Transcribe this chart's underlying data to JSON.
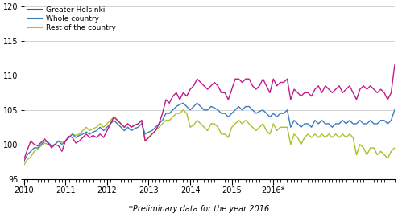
{
  "footnote": "*Preliminary data for the year 2016",
  "ylim": [
    95,
    120
  ],
  "yticks": [
    95,
    100,
    105,
    110,
    115,
    120
  ],
  "legend_labels": [
    "Greater Helsinki",
    "Whole country",
    "Rest of the country"
  ],
  "colors": [
    "#c0198a",
    "#3b7bbf",
    "#aabf28"
  ],
  "linewidth": 1.0,
  "greater_helsinki": [
    97.8,
    99.2,
    100.5,
    100.0,
    99.8,
    100.3,
    100.8,
    100.2,
    99.5,
    100.0,
    99.8,
    99.0,
    100.5,
    101.2,
    101.0,
    100.2,
    100.5,
    101.0,
    101.5,
    101.0,
    101.3,
    101.0,
    101.5,
    101.0,
    102.0,
    103.0,
    104.0,
    103.5,
    103.0,
    102.5,
    103.0,
    102.5,
    102.8,
    103.0,
    103.5,
    100.5,
    101.0,
    101.5,
    102.0,
    103.0,
    104.5,
    106.5,
    106.0,
    107.0,
    107.5,
    106.5,
    107.5,
    107.0,
    108.0,
    108.5,
    109.5,
    109.0,
    108.5,
    108.0,
    108.5,
    109.0,
    108.5,
    107.5,
    107.5,
    106.5,
    108.0,
    109.5,
    109.5,
    109.0,
    109.5,
    109.5,
    108.5,
    108.0,
    108.5,
    109.5,
    108.5,
    107.5,
    109.5,
    108.5,
    109.0,
    109.0,
    109.5,
    106.5,
    108.0,
    107.5,
    107.0,
    107.5,
    107.5,
    107.0,
    108.0,
    108.5,
    107.5,
    108.5,
    108.0,
    107.5,
    108.0,
    108.5,
    107.5,
    108.0,
    108.5,
    107.5,
    106.5,
    108.0,
    108.5,
    108.0,
    108.5,
    108.0,
    107.5,
    108.0,
    107.5,
    106.5,
    107.5,
    111.5
  ],
  "whole_country": [
    97.5,
    98.5,
    99.0,
    99.5,
    99.5,
    100.0,
    100.5,
    100.3,
    99.8,
    100.0,
    100.5,
    100.0,
    100.5,
    101.0,
    101.5,
    101.0,
    101.3,
    101.5,
    101.8,
    101.5,
    101.8,
    102.0,
    102.5,
    102.0,
    102.5,
    103.0,
    103.5,
    103.0,
    102.5,
    102.0,
    102.5,
    102.0,
    102.3,
    102.5,
    103.0,
    101.5,
    101.8,
    102.0,
    102.5,
    103.0,
    103.5,
    104.5,
    104.5,
    105.0,
    105.5,
    105.8,
    106.0,
    105.5,
    105.0,
    105.5,
    106.0,
    105.5,
    105.0,
    105.0,
    105.5,
    105.3,
    105.0,
    104.5,
    104.5,
    104.0,
    104.5,
    105.0,
    105.5,
    105.0,
    105.5,
    105.5,
    105.0,
    104.5,
    104.8,
    105.0,
    104.5,
    104.0,
    104.5,
    104.0,
    104.5,
    104.5,
    105.0,
    102.5,
    103.5,
    103.0,
    102.5,
    103.0,
    103.0,
    102.5,
    103.5,
    103.0,
    103.5,
    103.0,
    103.0,
    102.5,
    103.0,
    103.0,
    103.5,
    103.0,
    103.5,
    103.0,
    103.0,
    103.5,
    103.0,
    103.0,
    103.5,
    103.0,
    103.0,
    103.5,
    103.5,
    103.0,
    103.5,
    105.0
  ],
  "rest_of_country": [
    97.0,
    97.8,
    98.2,
    99.0,
    99.3,
    99.8,
    100.2,
    100.0,
    99.8,
    100.0,
    100.5,
    100.3,
    100.5,
    101.0,
    101.5,
    101.3,
    101.5,
    102.0,
    102.5,
    102.0,
    102.3,
    102.5,
    103.0,
    102.5,
    103.0,
    103.5,
    104.0,
    103.5,
    103.0,
    102.5,
    103.0,
    102.5,
    102.8,
    103.0,
    103.5,
    100.5,
    101.0,
    101.5,
    102.0,
    102.5,
    103.0,
    103.5,
    103.5,
    104.0,
    104.5,
    104.5,
    105.0,
    104.5,
    102.5,
    102.8,
    103.5,
    103.0,
    102.5,
    102.0,
    103.0,
    103.0,
    102.5,
    101.5,
    101.5,
    101.0,
    102.5,
    103.0,
    103.5,
    103.0,
    103.5,
    103.0,
    102.5,
    102.0,
    102.5,
    103.0,
    102.0,
    101.5,
    103.0,
    102.0,
    102.5,
    102.5,
    102.5,
    100.0,
    101.5,
    101.0,
    100.0,
    101.0,
    101.5,
    101.0,
    101.5,
    101.0,
    101.5,
    101.0,
    101.5,
    101.0,
    101.5,
    101.0,
    101.5,
    101.0,
    101.5,
    101.0,
    98.5,
    100.0,
    99.5,
    98.5,
    99.5,
    99.5,
    98.5,
    99.0,
    98.5,
    98.0,
    99.0,
    99.5
  ],
  "xtick_years": [
    "2010",
    "2011",
    "2012",
    "2013",
    "2014",
    "2015",
    "2016*"
  ],
  "xtick_positions": [
    0,
    12,
    24,
    36,
    48,
    60,
    72
  ]
}
